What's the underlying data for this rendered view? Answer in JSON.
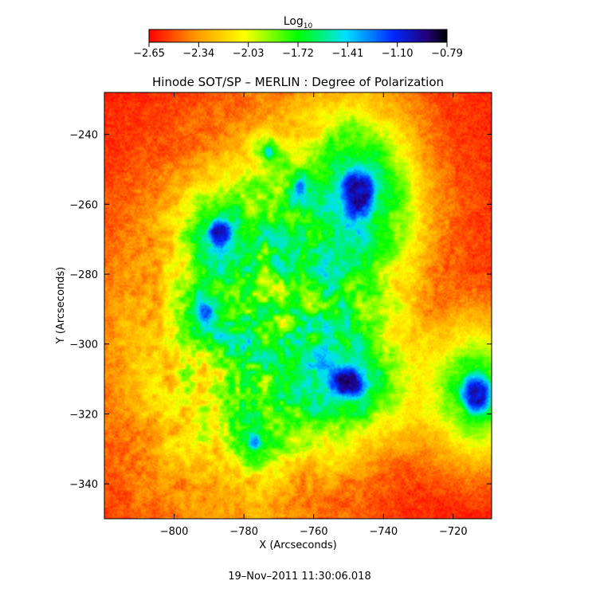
{
  "chart_data": {
    "type": "heatmap",
    "title": "Hinode SOT/SP – MERLIN : Degree of Polarization",
    "xlabel": "X (Arcseconds)",
    "ylabel": "Y (Arcseconds)",
    "timestamp": "19–Nov–2011 11:30:06.018",
    "xlim": [
      -820,
      -709
    ],
    "ylim": [
      -350,
      -228
    ],
    "x_ticks": [
      -800,
      -780,
      -760,
      -740,
      -720
    ],
    "y_ticks": [
      -240,
      -260,
      -280,
      -300,
      -320,
      -340
    ],
    "x_tick_labels": [
      "−800",
      "−780",
      "−760",
      "−740",
      "−720"
    ],
    "y_tick_labels": [
      "−240",
      "−260",
      "−280",
      "−300",
      "−320",
      "−340"
    ],
    "colorbar": {
      "label_base": "Log",
      "label_sub": "10",
      "range": [
        -2.65,
        -0.79
      ],
      "tick_values": [
        -2.65,
        -2.34,
        -2.03,
        -1.72,
        -1.41,
        -1.1,
        -0.79
      ],
      "tick_labels": [
        "−2.65",
        "−2.34",
        "−2.03",
        "−1.72",
        "−1.41",
        "−1.10",
        "−0.79"
      ],
      "colors": [
        "#ff0000",
        "#ff9a00",
        "#ffff00",
        "#00ff00",
        "#00e0ff",
        "#0028ff",
        "#22007a",
        "#000000"
      ]
    },
    "features": [
      {
        "x": -747,
        "y": -257,
        "rx": 6.5,
        "ry": 10,
        "peak": -0.8
      },
      {
        "x": -787,
        "y": -268,
        "rx": 4.5,
        "ry": 5.5,
        "peak": -0.95
      },
      {
        "x": -750,
        "y": -311,
        "rx": 7,
        "ry": 6.5,
        "peak": -0.8
      },
      {
        "x": -713,
        "y": -314,
        "rx": 6,
        "ry": 8,
        "peak": -0.82
      },
      {
        "x": -791,
        "y": -291,
        "rx": 3,
        "ry": 3.5,
        "peak": -1.15
      },
      {
        "x": -777,
        "y": -328,
        "rx": 2.5,
        "ry": 3,
        "peak": -1.2
      },
      {
        "x": -764,
        "y": -255,
        "rx": 2,
        "ry": 3,
        "peak": -1.2
      },
      {
        "x": -773,
        "y": -245,
        "rx": 2,
        "ry": 2.5,
        "peak": -1.4
      },
      {
        "x": -758,
        "y": -279,
        "rx": 2,
        "ry": 2,
        "peak": -1.4
      }
    ],
    "grid": false
  }
}
